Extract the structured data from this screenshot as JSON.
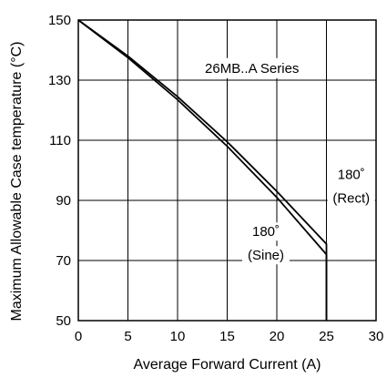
{
  "chart_data": {
    "type": "line",
    "title": "",
    "xlabel": "Average Forward Current (A)",
    "ylabel": "Maximum Allowable Case temperature (°C)",
    "xlim": [
      0,
      30
    ],
    "ylim": [
      50,
      150
    ],
    "xticks": [
      0,
      5,
      10,
      15,
      20,
      25,
      30
    ],
    "yticks": [
      50,
      70,
      90,
      110,
      130,
      150
    ],
    "grid": true,
    "series": [
      {
        "name": "",
        "annotation_lines": [
          "180˚",
          "(Rect)"
        ],
        "x": [
          0,
          5,
          10,
          15,
          20,
          25,
          25
        ],
        "y": [
          150,
          138,
          124.5,
          109.5,
          93,
          75.5,
          50
        ]
      },
      {
        "name": "",
        "annotation_lines": [
          "180˚",
          "(Sine)"
        ],
        "x": [
          0,
          5,
          10,
          15,
          20,
          25,
          25
        ],
        "y": [
          150,
          137.5,
          123.5,
          108,
          91,
          72,
          50
        ]
      }
    ],
    "annotations": [
      {
        "text": "26MB..A Series",
        "x": 17.5,
        "y": 134
      },
      {
        "lines": [
          "180˚",
          "(Rect)"
        ],
        "x": 27.5,
        "y": 95
      },
      {
        "lines": [
          "180˚",
          "(Sine)"
        ],
        "x": 18.9,
        "y": 76
      }
    ]
  }
}
